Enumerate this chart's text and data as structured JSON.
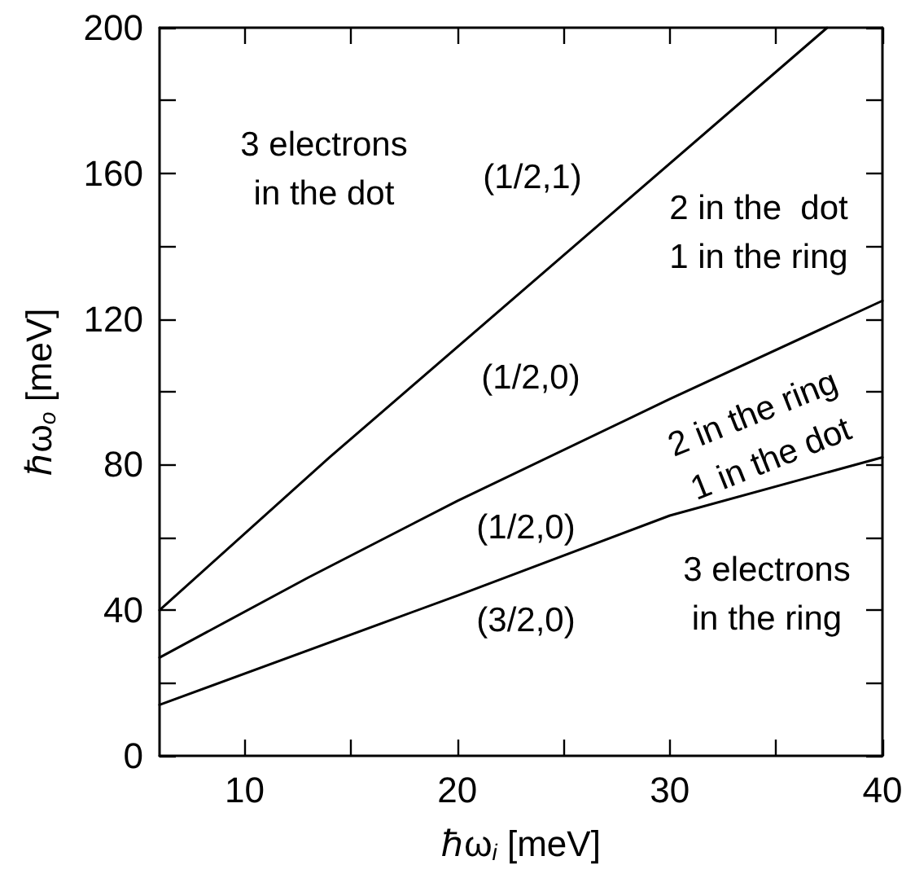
{
  "chart_data": {
    "type": "line",
    "xlabel": "ℏω$_{i}$ [meV]",
    "ylabel": "ℏω$_{o}$ [meV]",
    "xlim": [
      6,
      40
    ],
    "xticks": [
      10,
      {
        "value": 15,
        "label": null
      },
      20,
      {
        "value": 25,
        "label": null
      },
      30,
      {
        "value": 35,
        "label": null
      },
      40
    ],
    "ylim": [
      0,
      200
    ],
    "yticks": [
      0,
      {
        "value": 20,
        "label": null
      },
      40,
      {
        "value": 60,
        "label": null
      },
      80,
      {
        "value": 100,
        "label": null
      },
      120,
      {
        "value": 140,
        "label": null
      },
      160,
      {
        "value": 180,
        "label": null
      },
      200
    ],
    "grid": false,
    "marker": "none",
    "line_style": "solid",
    "series": [
      {
        "color": "#000000",
        "x": [
          6,
          14,
          37.4
        ],
        "values": [
          40,
          82,
          200
        ]
      },
      {
        "color": "#000000",
        "x": [
          6,
          13,
          20,
          30,
          40
        ],
        "values": [
          27,
          49,
          70,
          98,
          125
        ]
      },
      {
        "color": "#000000",
        "x": [
          6,
          20,
          30,
          40
        ],
        "values": [
          14,
          44,
          66,
          82
        ]
      }
    ],
    "annotations": [
      "3 electrons\nin the dot",
      "(1/2,1)",
      "2 in the  dot\n1 in the ring",
      "(1/2,0)",
      "2 in the ring\n1 in the dot",
      "(1/2,0)",
      "3 electrons\nin the ring",
      "(3/2,0)"
    ]
  }
}
